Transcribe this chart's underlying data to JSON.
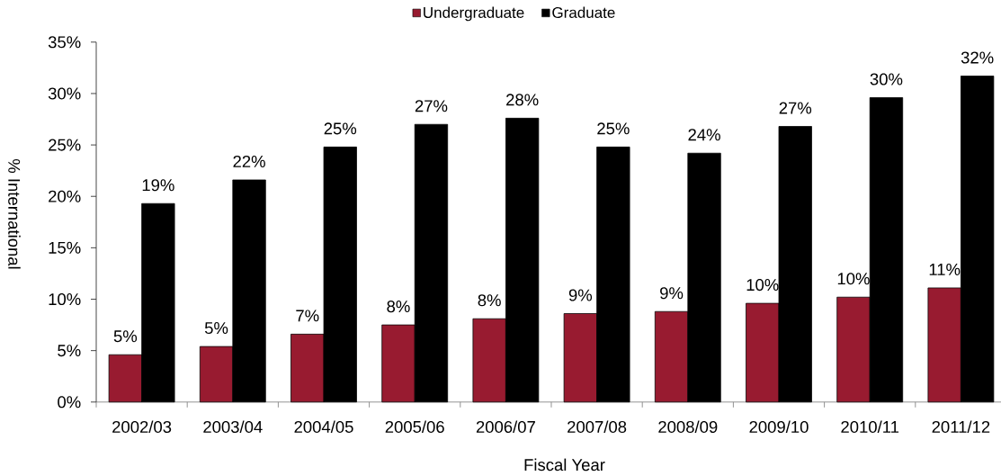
{
  "chart_data": {
    "type": "bar",
    "xlabel": "Fiscal Year",
    "ylabel": "% International",
    "categories": [
      "2002/03",
      "2003/04",
      "2004/05",
      "2005/06",
      "2006/07",
      "2007/08",
      "2008/09",
      "2009/10",
      "2010/11",
      "2011/12"
    ],
    "series": [
      {
        "name": "Undergraduate",
        "color": "#981b30",
        "values": [
          4.6,
          5.4,
          6.6,
          7.5,
          8.1,
          8.6,
          8.8,
          9.6,
          10.2,
          11.1
        ],
        "value_labels": [
          "5%",
          "5%",
          "7%",
          "8%",
          "8%",
          "9%",
          "9%",
          "10%",
          "10%",
          "11%"
        ]
      },
      {
        "name": "Graduate",
        "color": "#000000",
        "values": [
          19.3,
          21.6,
          24.8,
          27.0,
          27.6,
          24.8,
          24.2,
          26.8,
          29.6,
          31.7
        ],
        "value_labels": [
          "19%",
          "22%",
          "25%",
          "27%",
          "28%",
          "25%",
          "24%",
          "27%",
          "30%",
          "32%"
        ]
      }
    ],
    "ylim": [
      0,
      35
    ],
    "yticks": [
      {
        "value": 0,
        "label": "0%"
      },
      {
        "value": 5,
        "label": "5%"
      },
      {
        "value": 10,
        "label": "10%"
      },
      {
        "value": 15,
        "label": "15%"
      },
      {
        "value": 20,
        "label": "20%"
      },
      {
        "value": 25,
        "label": "25%"
      },
      {
        "value": 30,
        "label": "30%"
      },
      {
        "value": 35,
        "label": "35%"
      }
    ],
    "legend": "top"
  }
}
